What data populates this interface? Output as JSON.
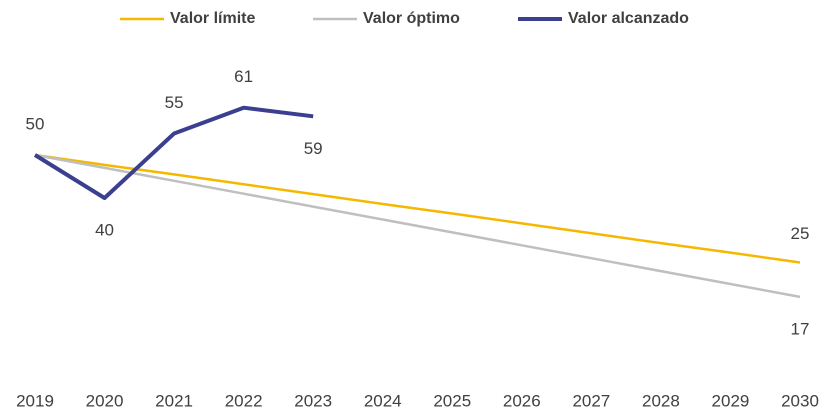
{
  "chart_data": {
    "type": "line",
    "categories": [
      "2019",
      "2020",
      "2021",
      "2022",
      "2023",
      "2024",
      "2025",
      "2026",
      "2027",
      "2028",
      "2029",
      "2030"
    ],
    "series": [
      {
        "name": "Valor límite",
        "color": "#f5b800",
        "values": [
          50,
          47.7,
          45.5,
          43.2,
          40.9,
          38.6,
          36.4,
          34.1,
          31.8,
          29.5,
          27.3,
          25
        ]
      },
      {
        "name": "Valor óptimo",
        "color": "#bfbfbf",
        "values": [
          50,
          47,
          44,
          41,
          38,
          35,
          32,
          29,
          26,
          23,
          20,
          17
        ]
      },
      {
        "name": "Valor alcanzado",
        "color": "#3b3f8f",
        "values": [
          50,
          40,
          55,
          61,
          59,
          null,
          null,
          null,
          null,
          null,
          null,
          null
        ]
      }
    ],
    "ylim": [
      0,
      70
    ],
    "legend": "top"
  }
}
